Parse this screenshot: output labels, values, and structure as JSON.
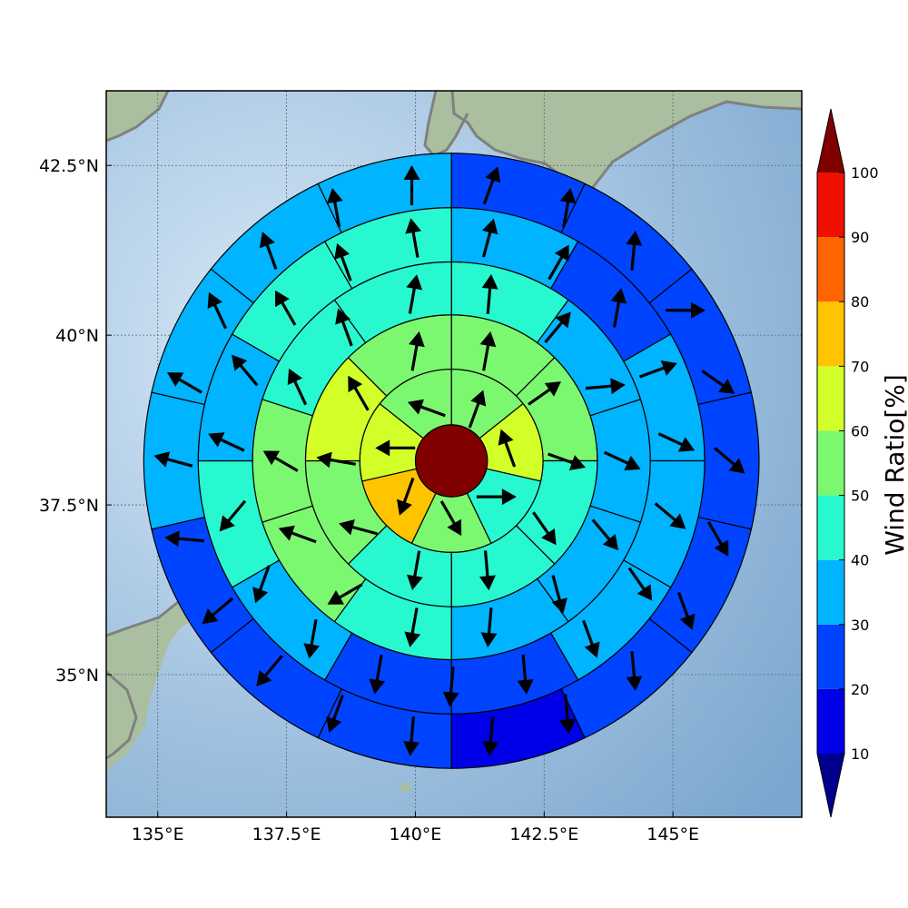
{
  "chart_data": {
    "type": "heatmap",
    "title": "",
    "projection": "polar sector grid over map (lon/lat)",
    "x_axis": {
      "lim": [
        134.0,
        147.5
      ],
      "ticks": [
        135,
        137.5,
        140,
        142.5,
        145
      ],
      "tick_labels": [
        "135°E",
        "137.5°E",
        "140°E",
        "142.5°E",
        "145°E"
      ]
    },
    "y_axis": {
      "lim": [
        32.9,
        43.6
      ],
      "ticks": [
        35,
        37.5,
        40,
        42.5
      ],
      "tick_labels": [
        "35°N",
        "37.5°N",
        "40°N",
        "42.5°N"
      ]
    },
    "grid": true,
    "center": {
      "lon": 140.7,
      "lat": 38.15,
      "value": 100
    },
    "ring_edges_deg": [
      0.53,
      1.35,
      2.15,
      2.93,
      3.73,
      4.53
    ],
    "sectors_per_ring": [
      7,
      8,
      10,
      12,
      14
    ],
    "sector_values_clockwise_from_north": [
      [
        55,
        65,
        45,
        55,
        75,
        65,
        55
      ],
      [
        55,
        55,
        40,
        45,
        40,
        55,
        65,
        55
      ],
      [
        45,
        35,
        35,
        35,
        35,
        45,
        55,
        55,
        45,
        45
      ],
      [
        35,
        25,
        35,
        35,
        35,
        25,
        25,
        35,
        45,
        35,
        45,
        45
      ],
      [
        25,
        25,
        25,
        25,
        25,
        25,
        15,
        25,
        25,
        25,
        35,
        35,
        35,
        35
      ]
    ],
    "arrow_directions_deg_math": [
      [
        70,
        110,
        0,
        -60,
        -110,
        180,
        160
      ],
      [
        80,
        35,
        -20,
        -55,
        -85,
        -100,
        165,
        170,
        120,
        80
      ],
      [
        85,
        50,
        5,
        -25,
        -50,
        -75,
        -95,
        -100,
        -150,
        160,
        150,
        115,
        110,
        80
      ],
      [
        75,
        60,
        80,
        20,
        -25,
        -40,
        -55,
        -70,
        -85,
        -95,
        -100,
        -100,
        -110,
        -130,
        155,
        130,
        120,
        110,
        100
      ],
      [
        70,
        80,
        85,
        0,
        -35,
        -40,
        -60,
        -70,
        -85,
        -85,
        -95,
        -95,
        -110,
        -130,
        -140,
        175,
        165,
        150,
        115,
        110,
        100,
        90
      ]
    ],
    "arrow_ring_radii_deg": [
      0.85,
      1.7,
      2.52,
      3.33,
      4.1
    ],
    "colorbar": {
      "label": "Wind Ratio[%]",
      "boundaries": [
        10,
        20,
        30,
        40,
        50,
        60,
        70,
        80,
        90,
        100
      ],
      "tick_labels": [
        "10",
        "20",
        "30",
        "40",
        "50",
        "60",
        "70",
        "80",
        "90",
        "100"
      ],
      "colors": [
        "#0000e8",
        "#0044ff",
        "#00b4ff",
        "#28f8d0",
        "#7cf870",
        "#d2ff28",
        "#ffc400",
        "#ff6400",
        "#f01000"
      ],
      "under_color": "#00008c",
      "over_color": "#800000",
      "extend": "both"
    },
    "colors": {
      "ocean_light": "#d6e8f6",
      "ocean_dark": "#7aa7ce",
      "land": "#a9bfa0",
      "coastline": "#808080"
    }
  }
}
